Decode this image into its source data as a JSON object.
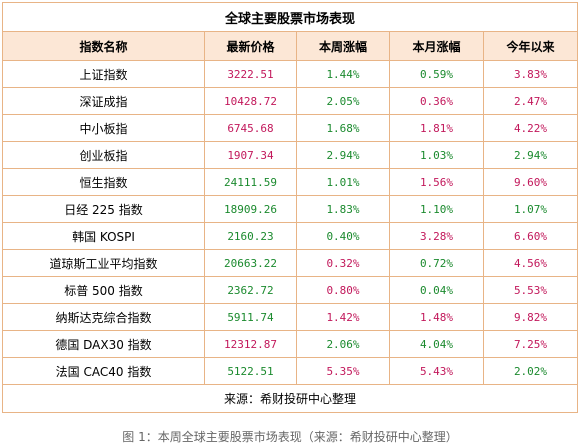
{
  "table": {
    "title": "全球主要股票市场表现",
    "headers": [
      "指数名称",
      "最新价格",
      "本周涨幅",
      "本月涨幅",
      "今年以来"
    ],
    "rows": [
      {
        "name": "上证指数",
        "price": "3222.51",
        "week": "1.44%",
        "month": "0.59%",
        "ytd": "3.83%",
        "colors": [
          "#c2185b",
          "#1b8a2e",
          "#1b8a2e",
          "#c2185b"
        ]
      },
      {
        "name": "深证成指",
        "price": "10428.72",
        "week": "2.05%",
        "month": "0.36%",
        "ytd": "2.47%",
        "colors": [
          "#c2185b",
          "#1b8a2e",
          "#c2185b",
          "#c2185b"
        ]
      },
      {
        "name": "中小板指",
        "price": "6745.68",
        "week": "1.68%",
        "month": "1.81%",
        "ytd": "4.22%",
        "colors": [
          "#c2185b",
          "#1b8a2e",
          "#c2185b",
          "#c2185b"
        ]
      },
      {
        "name": "创业板指",
        "price": "1907.34",
        "week": "2.94%",
        "month": "1.03%",
        "ytd": "2.94%",
        "colors": [
          "#c2185b",
          "#1b8a2e",
          "#1b8a2e",
          "#1b8a2e"
        ]
      },
      {
        "name": "恒生指数",
        "price": "24111.59",
        "week": "1.01%",
        "month": "1.56%",
        "ytd": "9.60%",
        "colors": [
          "#1b8a2e",
          "#1b8a2e",
          "#c2185b",
          "#c2185b"
        ]
      },
      {
        "name": "日经 225 指数",
        "price": "18909.26",
        "week": "1.83%",
        "month": "1.10%",
        "ytd": "1.07%",
        "colors": [
          "#1b8a2e",
          "#1b8a2e",
          "#1b8a2e",
          "#1b8a2e"
        ]
      },
      {
        "name": "韩国 KOSPI",
        "price": "2160.23",
        "week": "0.40%",
        "month": "3.28%",
        "ytd": "6.60%",
        "colors": [
          "#1b8a2e",
          "#1b8a2e",
          "#c2185b",
          "#c2185b"
        ]
      },
      {
        "name": "道琼斯工业平均指数",
        "price": "20663.22",
        "week": "0.32%",
        "month": "0.72%",
        "ytd": "4.56%",
        "colors": [
          "#1b8a2e",
          "#c2185b",
          "#1b8a2e",
          "#c2185b"
        ]
      },
      {
        "name": "标普 500 指数",
        "price": "2362.72",
        "week": "0.80%",
        "month": "0.04%",
        "ytd": "5.53%",
        "colors": [
          "#1b8a2e",
          "#c2185b",
          "#1b8a2e",
          "#c2185b"
        ]
      },
      {
        "name": "纳斯达克综合指数",
        "price": "5911.74",
        "week": "1.42%",
        "month": "1.48%",
        "ytd": "9.82%",
        "colors": [
          "#1b8a2e",
          "#c2185b",
          "#c2185b",
          "#c2185b"
        ]
      },
      {
        "name": "德国 DAX30 指数",
        "price": "12312.87",
        "week": "2.06%",
        "month": "4.04%",
        "ytd": "7.25%",
        "colors": [
          "#c2185b",
          "#1b8a2e",
          "#1b8a2e",
          "#c2185b"
        ]
      },
      {
        "name": "法国 CAC40 指数",
        "price": "5122.51",
        "week": "5.35%",
        "month": "5.43%",
        "ytd": "2.02%",
        "colors": [
          "#1b8a2e",
          "#c2185b",
          "#c2185b",
          "#1b8a2e"
        ]
      }
    ],
    "source": "来源：希财投研中心整理"
  },
  "caption": "图 1：本周全球主要股票市场表现（来源：希财投研中心整理）"
}
